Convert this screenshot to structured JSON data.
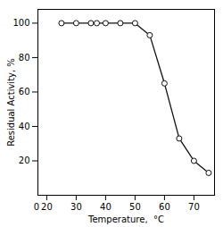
{
  "chart_data": {
    "type": "line",
    "x": [
      25,
      30,
      35,
      37,
      40,
      45,
      50,
      55,
      60,
      65,
      70,
      75
    ],
    "values": [
      100,
      100,
      100,
      100,
      100,
      100,
      100,
      93,
      65,
      33,
      20,
      13
    ],
    "color": "#111111",
    "marker": "circle",
    "xlabel": "Temperature,  °C",
    "ylabel": "Residual Activity, %",
    "xlim": [
      17,
      77
    ],
    "ylim": [
      0,
      108
    ],
    "xticks": [
      20,
      30,
      40,
      50,
      60,
      70
    ],
    "yticks": [
      20,
      40,
      60,
      80,
      100
    ],
    "grid": false,
    "annotations": [
      {
        "text": "0",
        "x": 17.8
      }
    ]
  }
}
